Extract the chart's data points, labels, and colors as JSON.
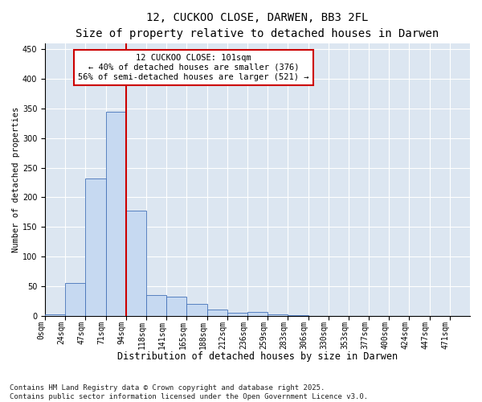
{
  "title_line1": "12, CUCKOO CLOSE, DARWEN, BB3 2FL",
  "title_line2": "Size of property relative to detached houses in Darwen",
  "xlabel": "Distribution of detached houses by size in Darwen",
  "ylabel": "Number of detached properties",
  "bin_labels": [
    "0sqm",
    "24sqm",
    "47sqm",
    "71sqm",
    "94sqm",
    "118sqm",
    "141sqm",
    "165sqm",
    "188sqm",
    "212sqm",
    "236sqm",
    "259sqm",
    "283sqm",
    "306sqm",
    "330sqm",
    "353sqm",
    "377sqm",
    "400sqm",
    "424sqm",
    "447sqm",
    "471sqm"
  ],
  "bar_values": [
    2,
    55,
    232,
    345,
    178,
    35,
    32,
    20,
    10,
    5,
    6,
    3,
    1,
    0,
    0,
    0,
    0,
    0,
    0,
    0,
    0
  ],
  "bar_color": "#c6d9f1",
  "bar_edge_color": "#4472b8",
  "vline_x": 4,
  "vline_color": "#cc0000",
  "annotation_text": "12 CUCKOO CLOSE: 101sqm\n← 40% of detached houses are smaller (376)\n56% of semi-detached houses are larger (521) →",
  "annotation_box_color": "#ffffff",
  "annotation_box_edge": "#cc0000",
  "annotation_fontsize": 7.5,
  "ylim": [
    0,
    460
  ],
  "yticks": [
    0,
    50,
    100,
    150,
    200,
    250,
    300,
    350,
    400,
    450
  ],
  "background_color": "#dce6f1",
  "footnote": "Contains HM Land Registry data © Crown copyright and database right 2025.\nContains public sector information licensed under the Open Government Licence v3.0.",
  "title_fontsize": 10,
  "subtitle_fontsize": 9,
  "xlabel_fontsize": 8.5,
  "ylabel_fontsize": 7.5,
  "tick_fontsize": 7
}
